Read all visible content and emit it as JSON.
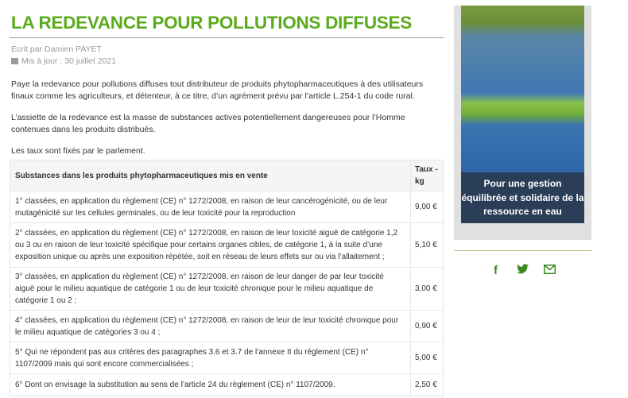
{
  "article": {
    "title": "LA REDEVANCE POUR POLLUTIONS DIFFUSES",
    "author": "Écrit par Damien PAYET",
    "updated": "Mis à jour : 30 juillet 2021",
    "paragraphs": [
      "Paye la redevance pour pollutions diffuses tout distributeur de produits phytopharmaceutiques à des utilisateurs finaux comme les agriculteurs, et détenteur, à ce titre, d’un agrément prévu par l’article L.254-1 du code rural.",
      "L’assiette de la redevance est la masse de substances actives potentiellement dangereuses pour l’Homme contenues dans les produits distribués.",
      "Les taux sont fixés par le parlement."
    ]
  },
  "table": {
    "headers": [
      "Substances dans les produits phytopharmaceutiques mis en vente",
      "Taux - kg"
    ],
    "rows": [
      [
        "1° classées, en application du règlement (CE) n° 1272/2008, en raison de leur cancérogénicité, ou de leur mutagénicité sur les cellules germinales, ou de leur toxicité pour la reproduction",
        "9,00 €"
      ],
      [
        " 2° classées, en application du règlement (CE) n° 1272/2008, en raison de leur toxicité aiguë de catégorie 1,2 ou 3 ou en raison de leur toxicité spécifique pour certains organes cibles, de catégorie 1, à la suite d’une exposition unique ou après une exposition répétée, soit en réseau de leurs effets sur ou via l’allaitement ;",
        "5,10 €"
      ],
      [
        "3° classées, en application du règlement (CE) n° 1272/2008, en raison de leur danger de par leur toxicité aiguë pour le milieu aquatique de catégorie 1 ou de leur toxicité chronique pour le milieu aquatique de catégorie 1 ou 2 ;",
        "3,00 €"
      ],
      [
        "4° classées, en application du règlement (CE) n° 1272/2008, en raison de leur de leur toxicité chronique pour le milieu aquatique de catégories 3 ou 4 ;",
        "0,90 €"
      ],
      [
        "5° Qui ne répondent pas aux critères des paragraphes 3.6 et 3.7 de l’annexe II du règlement (CE) n° 1107/2009 mais qui sont encore commercialisées ;",
        "5,00 €"
      ],
      [
        "6° Dont on envisage la substitution au sens de l’article 24 du règlement (CE) n° 1107/2009.",
        "2,50 €"
      ]
    ]
  },
  "sidebar": {
    "banner_caption": "Pour une gestion équilibrée et solidaire de la ressource en eau",
    "social": [
      {
        "icon": "facebook-icon",
        "glyph": "f"
      },
      {
        "icon": "twitter-icon",
        "glyph": "🐦"
      },
      {
        "icon": "mail-icon",
        "glyph": "✉"
      }
    ]
  },
  "colors": {
    "title": "#5aab1b",
    "social": "#3d8a1e",
    "caption_bg": "#2a3e58"
  }
}
